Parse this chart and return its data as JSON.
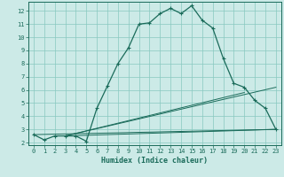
{
  "xlabel": "Humidex (Indice chaleur)",
  "xlim": [
    -0.5,
    23.5
  ],
  "ylim": [
    1.8,
    12.7
  ],
  "yticks": [
    2,
    3,
    4,
    5,
    6,
    7,
    8,
    9,
    10,
    11,
    12
  ],
  "xticks": [
    0,
    1,
    2,
    3,
    4,
    5,
    6,
    7,
    8,
    9,
    10,
    11,
    12,
    13,
    14,
    15,
    16,
    17,
    18,
    19,
    20,
    21,
    22,
    23
  ],
  "bg_color": "#cceae7",
  "grid_color": "#88c8c0",
  "line_color": "#1a6b5a",
  "curve_x": [
    0,
    1,
    2,
    3,
    4,
    5,
    6,
    7,
    8,
    9,
    10,
    11,
    12,
    13,
    14,
    15,
    16,
    17,
    18,
    19,
    20,
    21,
    22,
    23
  ],
  "curve_y": [
    2.6,
    2.2,
    2.5,
    2.5,
    2.5,
    2.1,
    4.6,
    6.3,
    8.0,
    9.2,
    11.0,
    11.1,
    11.8,
    12.2,
    11.8,
    12.4,
    11.3,
    10.7,
    8.4,
    6.5,
    6.2,
    5.2,
    4.6,
    3.0
  ],
  "fan_lines": [
    {
      "x": [
        0,
        23
      ],
      "y": [
        2.6,
        3.0
      ]
    },
    {
      "x": [
        3,
        23
      ],
      "y": [
        2.5,
        3.0
      ]
    },
    {
      "x": [
        3,
        20
      ],
      "y": [
        2.5,
        5.8
      ]
    },
    {
      "x": [
        3,
        23
      ],
      "y": [
        2.5,
        6.2
      ]
    }
  ]
}
